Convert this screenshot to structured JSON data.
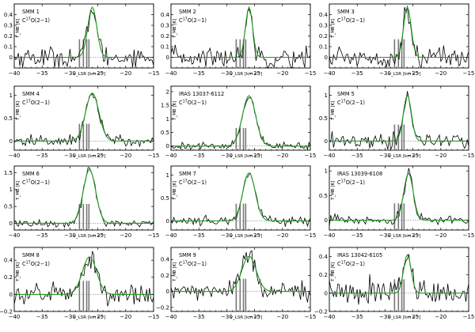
{
  "figure": {
    "x_label": "v_LSR [km s⁻¹]",
    "y_label": "T_MB [K]",
    "transition_prefix": "C",
    "transition_sup": "17",
    "transition_suffix": "O(2−1)"
  },
  "colors": {
    "observed": "#000000",
    "fit": "#1f9a1f",
    "hfs_markers": "#777777"
  },
  "chart_data": [
    {
      "type": "line",
      "source": "SMM 1",
      "ylim": [
        -0.1,
        0.5
      ],
      "yticks": [
        0.0,
        0.1,
        0.2,
        0.3,
        0.4
      ],
      "xlim": [
        -40,
        -15
      ],
      "xticks": [
        -40,
        -35,
        -30,
        -25,
        -20,
        -15
      ],
      "peak_velocity": -26.0,
      "peak": 0.47,
      "fwhm": 1.9,
      "noise": 0.05,
      "hfs_components": [
        -28.3,
        -27.6,
        -27.0,
        -26.6
      ]
    },
    {
      "type": "line",
      "source": "SMM 2",
      "ylim": [
        -0.1,
        0.5
      ],
      "yticks": [
        0.0,
        0.1,
        0.2,
        0.3,
        0.4
      ],
      "xlim": [
        -40,
        -15
      ],
      "xticks": [
        -40,
        -35,
        -30,
        -25,
        -20,
        -15
      ],
      "peak_velocity": -26.0,
      "peak": 0.47,
      "fwhm": 1.5,
      "noise": 0.05,
      "hfs_components": [
        -28.3,
        -27.6,
        -27.0,
        -26.6
      ]
    },
    {
      "type": "line",
      "source": "SMM 3",
      "ylim": [
        -0.1,
        0.5
      ],
      "yticks": [
        0.0,
        0.1,
        0.2,
        0.3,
        0.4
      ],
      "xlim": [
        -40,
        -15
      ],
      "xticks": [
        -40,
        -35,
        -30,
        -25,
        -20,
        -15
      ],
      "peak_velocity": -26.0,
      "peak": 0.47,
      "fwhm": 1.6,
      "noise": 0.05,
      "hfs_components": [
        -28.3,
        -27.6,
        -27.0,
        -26.6
      ]
    },
    {
      "type": "line",
      "source": "SMM 4",
      "ylim": [
        -0.2,
        1.2
      ],
      "yticks": [
        0.0,
        0.5,
        1.0
      ],
      "xlim": [
        -40,
        -15
      ],
      "xticks": [
        -40,
        -35,
        -30,
        -25,
        -20,
        -15
      ],
      "peak_velocity": -26.0,
      "peak": 1.05,
      "fwhm": 2.8,
      "noise": 0.06,
      "hfs_components": [
        -28.3,
        -27.6,
        -27.0,
        -26.6
      ]
    },
    {
      "type": "line",
      "source": "IRAS 13037-6112",
      "ylim": [
        -0.15,
        2.2
      ],
      "yticks": [
        0,
        0.5,
        1,
        1.5,
        2
      ],
      "xlim": [
        -40,
        -15
      ],
      "xticks": [
        -40,
        -35,
        -30,
        -25,
        -20,
        -15
      ],
      "peak_velocity": -26.0,
      "peak": 1.85,
      "fwhm": 2.8,
      "noise": 0.07,
      "hfs_components": [
        -28.3,
        -27.6,
        -27.0,
        -26.6
      ]
    },
    {
      "type": "line",
      "source": "SMM 5",
      "ylim": [
        -0.2,
        1.2
      ],
      "yticks": [
        0.0,
        0.5,
        1.0
      ],
      "xlim": [
        -40,
        -15
      ],
      "xticks": [
        -40,
        -35,
        -30,
        -25,
        -20,
        -15
      ],
      "peak_velocity": -26.0,
      "peak": 1.0,
      "fwhm": 1.7,
      "noise": 0.09,
      "hfs_components": [
        -28.3,
        -27.6,
        -27.0,
        -26.6
      ]
    },
    {
      "type": "line",
      "source": "SMM 6",
      "ylim": [
        -0.2,
        1.7
      ],
      "yticks": [
        0.0,
        0.5,
        1.0,
        1.5
      ],
      "xlim": [
        -40,
        -15
      ],
      "xticks": [
        -40,
        -35,
        -30,
        -25,
        -20,
        -15
      ],
      "peak_velocity": -26.5,
      "peak": 1.6,
      "fwhm": 2.6,
      "noise": 0.06,
      "hfs_components": [
        -28.3,
        -27.6,
        -27.0,
        -26.6
      ]
    },
    {
      "type": "line",
      "source": "SMM 7",
      "ylim": [
        -0.2,
        1.2
      ],
      "yticks": [
        0.0,
        0.5,
        1.0
      ],
      "xlim": [
        -40,
        -15
      ],
      "xticks": [
        -40,
        -35,
        -30,
        -25,
        -20,
        -15
      ],
      "peak_velocity": -26.0,
      "peak": 1.05,
      "fwhm": 2.6,
      "noise": 0.05,
      "hfs_components": [
        -28.3,
        -27.6,
        -27.0,
        -26.6
      ]
    },
    {
      "type": "line",
      "source": "IRAS 13039-6108",
      "ylim": [
        -0.2,
        1.1
      ],
      "yticks": [
        0.0,
        0.5,
        1.0
      ],
      "xlim": [
        -40,
        -15
      ],
      "xticks": [
        -40,
        -35,
        -30,
        -25,
        -20,
        -15
      ],
      "peak_velocity": -25.8,
      "peak": 0.95,
      "fwhm": 2.0,
      "noise": 0.05,
      "hfs_components": [
        -28.3,
        -27.6,
        -27.0,
        -26.6
      ]
    },
    {
      "type": "line",
      "source": "SMM 8",
      "ylim": [
        -0.2,
        0.55
      ],
      "yticks": [
        -0.2,
        0.0,
        0.2,
        0.4
      ],
      "xlim": [
        -40,
        -15
      ],
      "xticks": [
        -40,
        -35,
        -30,
        -25,
        -20,
        -15
      ],
      "peak_velocity": -26.5,
      "peak": 0.44,
      "fwhm": 3.0,
      "noise": 0.06,
      "hfs_components": [
        -28.3,
        -27.6,
        -27.0,
        -26.6
      ]
    },
    {
      "type": "line",
      "source": "SMM 9",
      "ylim": [
        -0.25,
        0.55
      ],
      "yticks": [
        -0.2,
        0.0,
        0.2,
        0.4
      ],
      "xlim": [
        -40,
        -15
      ],
      "xticks": [
        -40,
        -35,
        -30,
        -25,
        -20,
        -15
      ],
      "peak_velocity": -26.0,
      "peak": 0.44,
      "fwhm": 3.0,
      "noise": 0.06,
      "hfs_components": [
        -28.3,
        -27.6,
        -27.0,
        -26.6
      ]
    },
    {
      "type": "line",
      "source": "IRAS 13042-6105",
      "ylim": [
        -0.2,
        0.5
      ],
      "yticks": [
        -0.2,
        0.0,
        0.2,
        0.4
      ],
      "xlim": [
        -40,
        -15
      ],
      "xticks": [
        -40,
        -35,
        -30,
        -25,
        -20,
        -15
      ],
      "peak_velocity": -26.0,
      "peak": 0.42,
      "fwhm": 1.6,
      "noise": 0.07,
      "hfs_components": [
        -28.3,
        -27.6,
        -27.0,
        -26.6
      ]
    }
  ]
}
